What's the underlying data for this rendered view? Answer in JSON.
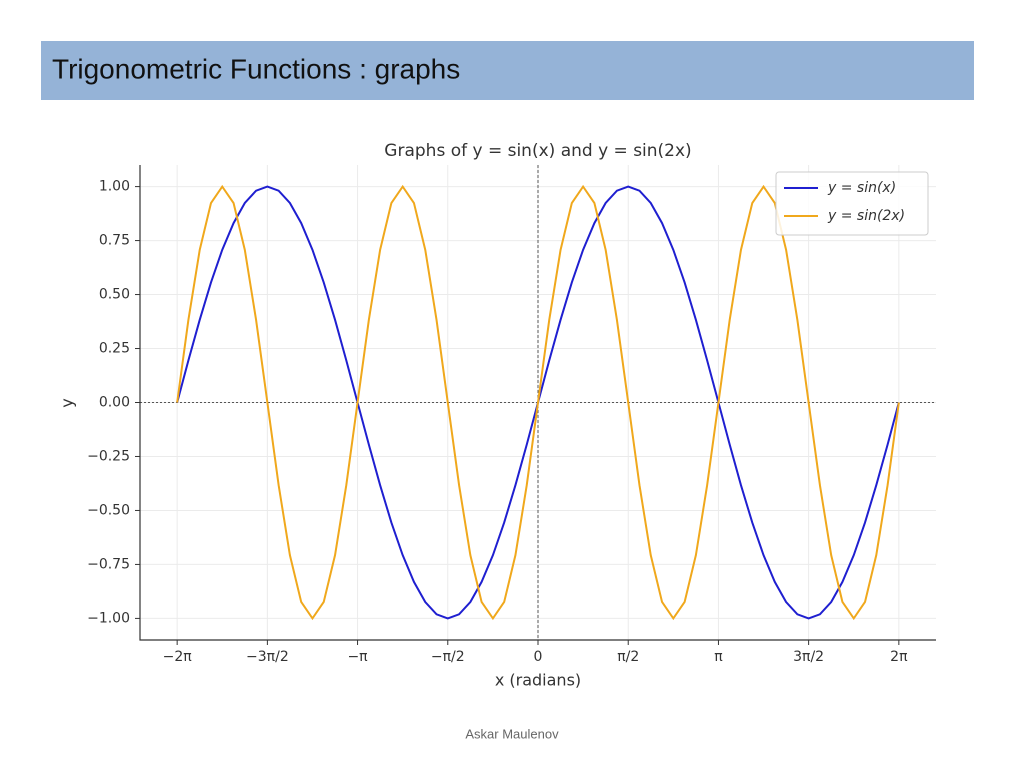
{
  "slide_title": "Trigonometric Functions : graphs",
  "footer": "Askar Maulenov",
  "chart_data": {
    "type": "line",
    "title": "Graphs of y = sin(x) and y = sin(2x)",
    "x_label": "x (radians)",
    "y_label": "y",
    "x": [
      -6.283,
      -6.087,
      -5.89,
      -5.694,
      -5.498,
      -5.301,
      -5.105,
      -4.909,
      -4.712,
      -4.516,
      -4.32,
      -4.123,
      -3.927,
      -3.731,
      -3.534,
      -3.338,
      -3.142,
      -2.945,
      -2.749,
      -2.553,
      -2.356,
      -2.16,
      -1.963,
      -1.767,
      -1.571,
      -1.374,
      -1.178,
      -0.982,
      -0.785,
      -0.589,
      -0.393,
      -0.196,
      0,
      0.196,
      0.393,
      0.589,
      0.785,
      0.982,
      1.178,
      1.374,
      1.571,
      1.767,
      1.963,
      2.16,
      2.356,
      2.553,
      2.749,
      2.945,
      3.142,
      3.338,
      3.534,
      3.731,
      3.927,
      4.123,
      4.32,
      4.516,
      4.712,
      4.909,
      5.105,
      5.301,
      5.498,
      5.694,
      5.89,
      6.087,
      6.283
    ],
    "series": [
      {
        "name": "y = sin(x)",
        "color": "#1f1fd0",
        "values": [
          0,
          0.195,
          0.383,
          0.556,
          0.707,
          0.831,
          0.924,
          0.981,
          1,
          0.981,
          0.924,
          0.831,
          0.707,
          0.556,
          0.383,
          0.195,
          0,
          -0.195,
          -0.383,
          -0.556,
          -0.707,
          -0.831,
          -0.924,
          -0.981,
          -1,
          -0.981,
          -0.924,
          -0.831,
          -0.707,
          -0.556,
          -0.383,
          -0.195,
          0,
          0.195,
          0.383,
          0.556,
          0.707,
          0.831,
          0.924,
          0.981,
          1,
          0.981,
          0.924,
          0.831,
          0.707,
          0.556,
          0.383,
          0.195,
          0,
          -0.195,
          -0.383,
          -0.556,
          -0.707,
          -0.831,
          -0.924,
          -0.981,
          -1,
          -0.981,
          -0.924,
          -0.831,
          -0.707,
          -0.556,
          -0.383,
          -0.195,
          0
        ]
      },
      {
        "name": "y = sin(2x)",
        "color": "#f0a81c",
        "values": [
          0,
          0.383,
          0.707,
          0.924,
          1,
          0.924,
          0.707,
          0.383,
          0,
          -0.383,
          -0.707,
          -0.924,
          -1,
          -0.924,
          -0.707,
          -0.383,
          0,
          0.383,
          0.707,
          0.924,
          1,
          0.924,
          0.707,
          0.383,
          0,
          -0.383,
          -0.707,
          -0.924,
          -1,
          -0.924,
          -0.707,
          -0.383,
          0,
          0.383,
          0.707,
          0.924,
          1,
          0.924,
          0.707,
          0.383,
          0,
          -0.383,
          -0.707,
          -0.924,
          -1,
          -0.924,
          -0.707,
          -0.383,
          0,
          0.383,
          0.707,
          0.924,
          1,
          0.924,
          0.707,
          0.383,
          0,
          -0.383,
          -0.707,
          -0.924,
          -1,
          -0.924,
          -0.707,
          -0.383,
          0
        ]
      }
    ],
    "xlim": [
      -6.93,
      6.93
    ],
    "ylim": [
      -1.1,
      1.1
    ],
    "xticks": [
      {
        "value": -6.283,
        "label": "−2π"
      },
      {
        "value": -4.712,
        "label": "−3π/2"
      },
      {
        "value": -3.142,
        "label": "−π"
      },
      {
        "value": -1.571,
        "label": "−π/2"
      },
      0,
      {
        "value": 1.571,
        "label": "π/2"
      },
      {
        "value": 3.142,
        "label": "π"
      },
      {
        "value": 4.712,
        "label": "3π/2"
      },
      {
        "value": 6.283,
        "label": "2π"
      }
    ],
    "yticks": [
      {
        "value": 1,
        "label": "1.00"
      },
      {
        "value": 0.75,
        "label": "0.75"
      },
      {
        "value": 0.5,
        "label": "0.50"
      },
      {
        "value": 0.25,
        "label": "0.25"
      },
      {
        "value": 0,
        "label": "0.00"
      },
      {
        "value": -0.25,
        "label": "−0.25"
      },
      {
        "value": -0.5,
        "label": "−0.50"
      },
      {
        "value": -0.75,
        "label": "−0.75"
      },
      {
        "value": -1,
        "label": "−1.00"
      }
    ],
    "grid": true,
    "legend": "upper right"
  }
}
